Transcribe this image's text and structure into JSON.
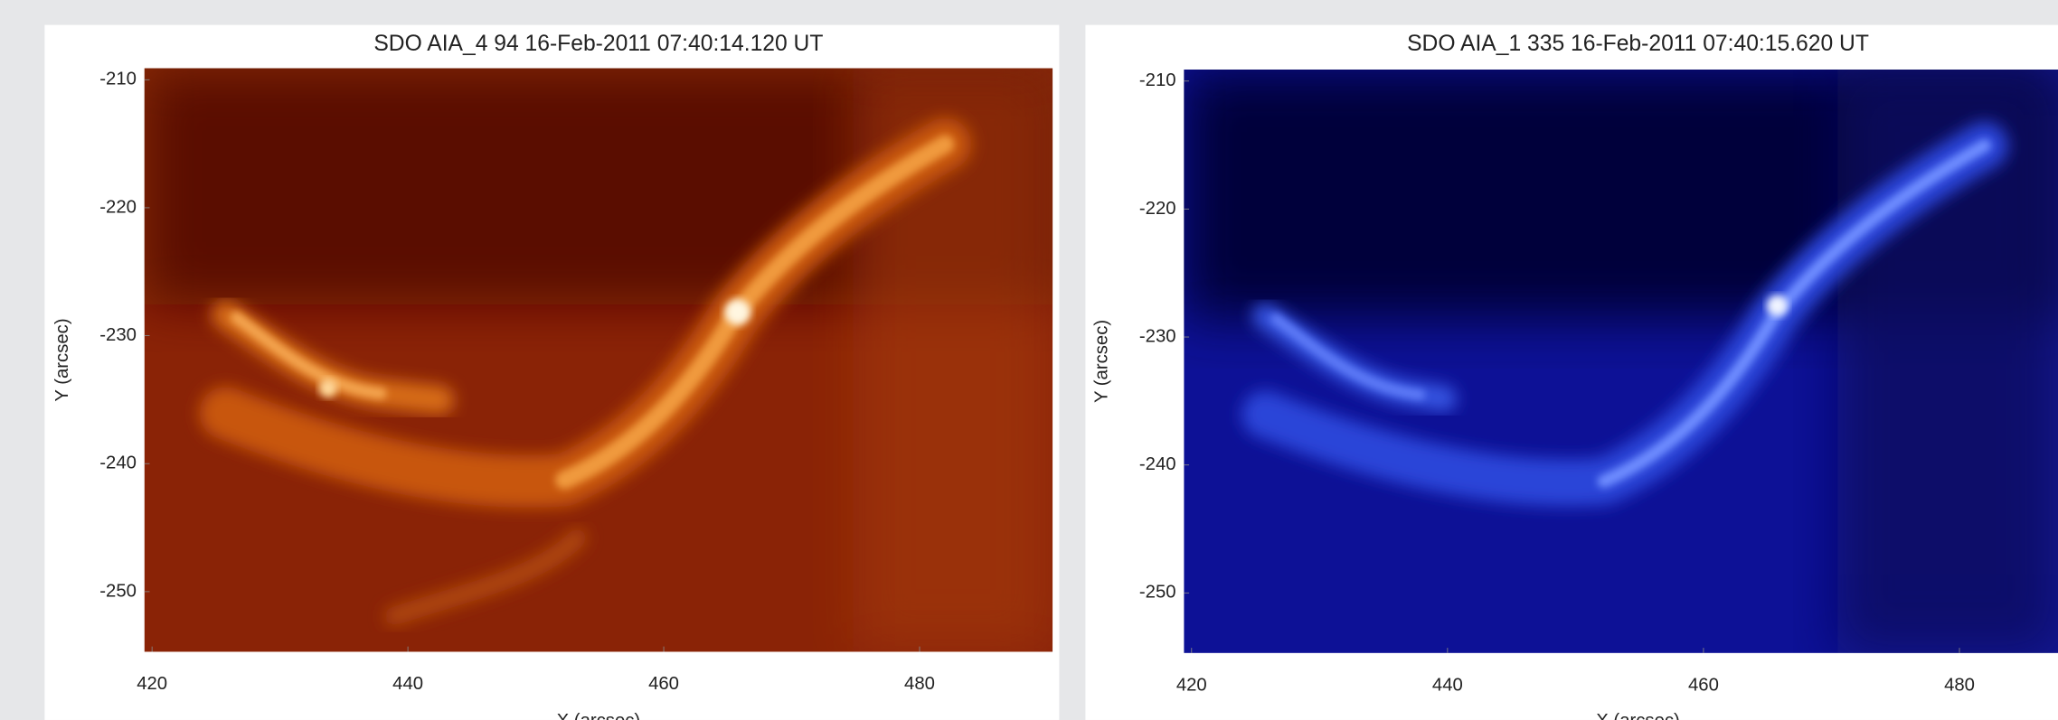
{
  "chart_data": [
    {
      "type": "image",
      "title": "SDO AIA_4 94 16-Feb-2011 07:40:14.120 UT",
      "xlabel": "X (arcsec)",
      "ylabel": "Y (arcsec)",
      "xlim": [
        419.4,
        490.4
      ],
      "ylim": [
        -254.7,
        -209.1
      ],
      "xticks": [
        420,
        440,
        460,
        480
      ],
      "yticks": [
        -210,
        -220,
        -230,
        -240,
        -250
      ]
    },
    {
      "type": "image",
      "title": "SDO AIA_1 335 16-Feb-2011 07:40:15.620 UT",
      "xlabel": "X (arcsec)",
      "ylabel": "Y (arcsec)",
      "xlim": [
        419.4,
        487.7
      ],
      "ylim": [
        -254.7,
        -209.1
      ],
      "xticks": [
        420,
        440,
        460,
        480
      ],
      "yticks": [
        -210,
        -220,
        -230,
        -240,
        -250
      ]
    }
  ]
}
